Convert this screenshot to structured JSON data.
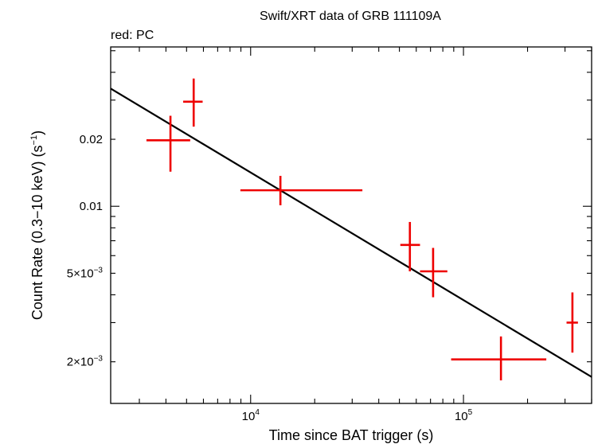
{
  "chart_data": {
    "type": "scatter",
    "title": "Swift/XRT data of GRB 111109A",
    "subtitle": "red: PC",
    "xlabel": "Time since BAT trigger (s)",
    "ylabel_main": "Count Rate (0.3−10 keV) (s",
    "ylabel_exp": "−1",
    "ylabel_close": ")",
    "xscale": "log",
    "yscale": "log",
    "xlim": [
      2200,
      400000
    ],
    "ylim": [
      0.0013,
      0.052
    ],
    "x_ticks": [
      {
        "value": 10000,
        "base": "10",
        "exp": "4"
      },
      {
        "value": 100000,
        "base": "10",
        "exp": "5"
      }
    ],
    "y_ticks": [
      {
        "value": 0.02,
        "label": "0.02",
        "exp": ""
      },
      {
        "value": 0.01,
        "label": "0.01",
        "exp": ""
      },
      {
        "value": 0.005,
        "label": "5×10",
        "exp": "−3"
      },
      {
        "value": 0.002,
        "label": "2×10",
        "exp": "−3"
      }
    ],
    "series": [
      {
        "name": "PC",
        "color": "#ee0000",
        "points": [
          {
            "x": 4200,
            "xlo": 3240,
            "xhi": 5200,
            "y": 0.0198,
            "ylo": 0.0143,
            "yhi": 0.0255
          },
          {
            "x": 5400,
            "xlo": 4820,
            "xhi": 5950,
            "y": 0.0295,
            "ylo": 0.0228,
            "yhi": 0.0375
          },
          {
            "x": 13800,
            "xlo": 8950,
            "xhi": 33500,
            "y": 0.0118,
            "ylo": 0.0101,
            "yhi": 0.0137
          },
          {
            "x": 56000,
            "xlo": 50500,
            "xhi": 62500,
            "y": 0.0067,
            "ylo": 0.0051,
            "yhi": 0.0085
          },
          {
            "x": 72000,
            "xlo": 62500,
            "xhi": 84000,
            "y": 0.0051,
            "ylo": 0.0039,
            "yhi": 0.0065
          },
          {
            "x": 150000,
            "xlo": 87500,
            "xhi": 245000,
            "y": 0.00205,
            "ylo": 0.00165,
            "yhi": 0.0026
          },
          {
            "x": 325000,
            "xlo": 305000,
            "xhi": 345000,
            "y": 0.003,
            "ylo": 0.0022,
            "yhi": 0.0041
          }
        ]
      }
    ],
    "model": {
      "name": "power-law fit",
      "color": "#000000",
      "x": [
        2200,
        400000
      ],
      "y": [
        0.0338,
        0.00171
      ]
    }
  }
}
